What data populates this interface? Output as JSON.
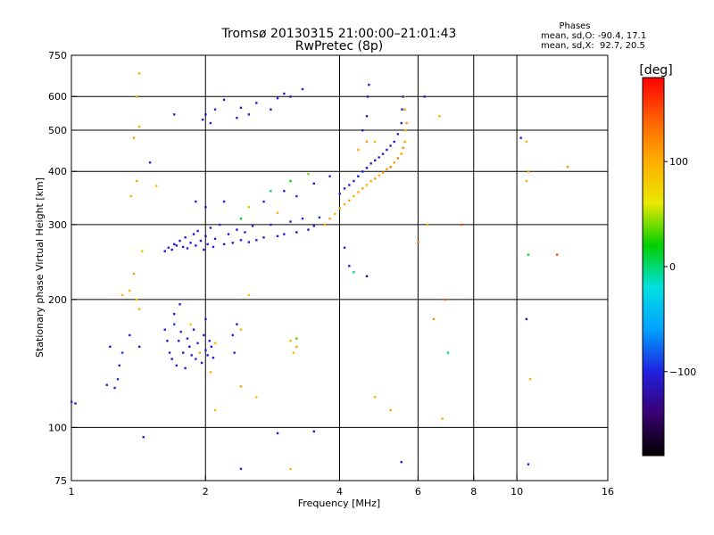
{
  "title": {
    "line1": "Tromsø 20130315 21:00:00–21:01:43",
    "line2": "RwPretec (8p)"
  },
  "phases_box": {
    "heading": "Phases",
    "line_o": "mean, sd,O: -90.4, 17.1",
    "line_x": "mean, sd,X:  92.7, 20.5"
  },
  "colorbar": {
    "label": "[deg]",
    "ticks": [
      {
        "label": "100",
        "value": 100
      },
      {
        "label": "0",
        "value": 0
      },
      {
        "label": "−100",
        "value": -100
      }
    ],
    "range": [
      -180,
      180
    ],
    "colors": [
      "#000000",
      "#3a0070",
      "#2020e0",
      "#00a0ff",
      "#00e0e0",
      "#00d000",
      "#e8e800",
      "#ffb000",
      "#ff6000",
      "#ff0000"
    ]
  },
  "chart_data": {
    "type": "scatter",
    "title": "Tromsø 20130315 21:00:00–21:01:43",
    "subtitle": "RwPretec (8p)",
    "xlabel": "Frequency [MHz]",
    "ylabel": "Stationary phase Virtual Height [km]",
    "x_scale": "log",
    "y_scale": "log",
    "xlim": [
      1,
      16
    ],
    "ylim": [
      75,
      750
    ],
    "x_ticks": [
      {
        "label": "1",
        "value": 1
      },
      {
        "label": "2",
        "value": 2
      },
      {
        "label": "4",
        "value": 4
      },
      {
        "label": "6",
        "value": 6
      },
      {
        "label": "8",
        "value": 8
      },
      {
        "label": "10",
        "value": 10
      },
      {
        "label": "16",
        "value": 16
      }
    ],
    "x_gridlines": [
      2,
      4,
      6,
      8,
      10
    ],
    "y_ticks": [
      {
        "label": "750",
        "value": 750
      },
      {
        "label": "600",
        "value": 600
      },
      {
        "label": "500",
        "value": 500
      },
      {
        "label": "400",
        "value": 400
      },
      {
        "label": "300",
        "value": 300
      },
      {
        "label": "200",
        "value": 200
      },
      {
        "label": "100",
        "value": 100
      },
      {
        "label": "75",
        "value": 75
      }
    ],
    "y_gridlines": [
      600,
      500,
      400,
      300,
      200,
      100
    ],
    "color_dimension": "phase [deg]",
    "points": [
      [
        1.0,
        115,
        -100
      ],
      [
        1.02,
        114,
        -110
      ],
      [
        1.2,
        126,
        -100
      ],
      [
        1.25,
        124,
        -105
      ],
      [
        1.27,
        130,
        -95
      ],
      [
        1.22,
        155,
        -110
      ],
      [
        1.28,
        140,
        -100
      ],
      [
        1.3,
        150,
        -90
      ],
      [
        1.35,
        165,
        -100
      ],
      [
        1.42,
        155,
        -110
      ],
      [
        1.45,
        95,
        -100
      ],
      [
        1.3,
        205,
        100
      ],
      [
        1.35,
        210,
        95
      ],
      [
        1.38,
        230,
        110
      ],
      [
        1.4,
        200,
        85
      ],
      [
        1.42,
        190,
        100
      ],
      [
        1.44,
        260,
        90
      ],
      [
        1.36,
        350,
        100
      ],
      [
        1.4,
        380,
        105
      ],
      [
        1.38,
        480,
        110
      ],
      [
        1.42,
        510,
        100
      ],
      [
        1.4,
        600,
        110
      ],
      [
        1.42,
        680,
        100
      ],
      [
        1.55,
        370,
        90
      ],
      [
        1.5,
        420,
        -100
      ],
      [
        1.62,
        170,
        -100
      ],
      [
        1.64,
        160,
        -110
      ],
      [
        1.66,
        150,
        -100
      ],
      [
        1.68,
        145,
        -120
      ],
      [
        1.7,
        175,
        -90
      ],
      [
        1.72,
        140,
        -110
      ],
      [
        1.74,
        160,
        -100
      ],
      [
        1.76,
        168,
        -95
      ],
      [
        1.78,
        150,
        -110
      ],
      [
        1.8,
        138,
        -100
      ],
      [
        1.82,
        162,
        -105
      ],
      [
        1.84,
        155,
        -115
      ],
      [
        1.86,
        148,
        -100
      ],
      [
        1.88,
        170,
        -110
      ],
      [
        1.9,
        145,
        -95
      ],
      [
        1.92,
        158,
        -100
      ],
      [
        1.94,
        150,
        100
      ],
      [
        1.96,
        142,
        -110
      ],
      [
        1.98,
        165,
        -100
      ],
      [
        2.0,
        152,
        -105
      ],
      [
        2.02,
        148,
        -110
      ],
      [
        2.04,
        160,
        -100
      ],
      [
        2.06,
        155,
        -120
      ],
      [
        2.08,
        146,
        -100
      ],
      [
        2.1,
        158,
        90
      ],
      [
        1.7,
        185,
        -100
      ],
      [
        1.75,
        195,
        -110
      ],
      [
        1.85,
        175,
        80
      ],
      [
        2.0,
        180,
        -100
      ],
      [
        2.05,
        135,
        100
      ],
      [
        2.3,
        165,
        -100
      ],
      [
        2.35,
        175,
        -110
      ],
      [
        2.4,
        170,
        100
      ],
      [
        2.32,
        150,
        -100
      ],
      [
        2.5,
        205,
        90
      ],
      [
        1.62,
        260,
        -110
      ],
      [
        1.65,
        265,
        -100
      ],
      [
        1.68,
        262,
        -120
      ],
      [
        1.7,
        270,
        -100
      ],
      [
        1.72,
        268,
        -110
      ],
      [
        1.75,
        275,
        -100
      ],
      [
        1.78,
        266,
        -115
      ],
      [
        1.8,
        280,
        -100
      ],
      [
        1.82,
        264,
        -110
      ],
      [
        1.85,
        272,
        -100
      ],
      [
        1.88,
        285,
        -110
      ],
      [
        1.9,
        268,
        -105
      ],
      [
        1.92,
        290,
        -100
      ],
      [
        1.95,
        275,
        -110
      ],
      [
        1.98,
        262,
        -100
      ],
      [
        2.0,
        282,
        -115
      ],
      [
        2.02,
        270,
        -100
      ],
      [
        2.05,
        295,
        -110
      ],
      [
        2.08,
        266,
        -100
      ],
      [
        2.1,
        278,
        -105
      ],
      [
        2.15,
        300,
        -100
      ],
      [
        2.2,
        270,
        -110
      ],
      [
        2.25,
        285,
        -100
      ],
      [
        2.3,
        272,
        -110
      ],
      [
        2.35,
        292,
        -100
      ],
      [
        2.4,
        276,
        -105
      ],
      [
        2.45,
        288,
        -100
      ],
      [
        2.5,
        273,
        -110
      ],
      [
        2.55,
        298,
        -100
      ],
      [
        2.6,
        276,
        -105
      ],
      [
        2.7,
        280,
        -110
      ],
      [
        2.8,
        300,
        -100
      ],
      [
        2.9,
        282,
        -110
      ],
      [
        3.0,
        285,
        -100
      ],
      [
        3.1,
        305,
        -105
      ],
      [
        3.2,
        288,
        -110
      ],
      [
        3.3,
        310,
        -100
      ],
      [
        3.4,
        292,
        -110
      ],
      [
        3.5,
        298,
        -100
      ],
      [
        3.6,
        312,
        -110
      ],
      [
        3.7,
        300,
        100
      ],
      [
        3.8,
        310,
        110
      ],
      [
        3.9,
        318,
        100
      ],
      [
        4.0,
        328,
        105
      ],
      [
        4.1,
        335,
        100
      ],
      [
        4.2,
        342,
        110
      ],
      [
        4.3,
        350,
        100
      ],
      [
        4.4,
        358,
        105
      ],
      [
        4.5,
        365,
        110
      ],
      [
        4.6,
        372,
        100
      ],
      [
        4.7,
        380,
        105
      ],
      [
        4.8,
        385,
        110
      ],
      [
        4.9,
        392,
        100
      ],
      [
        5.0,
        398,
        120
      ],
      [
        5.1,
        405,
        110
      ],
      [
        5.2,
        410,
        130
      ],
      [
        5.3,
        420,
        110
      ],
      [
        5.4,
        430,
        120
      ],
      [
        5.5,
        440,
        110
      ],
      [
        5.55,
        455,
        120
      ],
      [
        5.6,
        470,
        110
      ],
      [
        5.62,
        500,
        100
      ],
      [
        5.65,
        520,
        110
      ],
      [
        5.6,
        560,
        110
      ],
      [
        5.58,
        600,
        100
      ],
      [
        4.0,
        355,
        -100
      ],
      [
        4.1,
        365,
        -110
      ],
      [
        4.2,
        372,
        -100
      ],
      [
        4.3,
        380,
        -105
      ],
      [
        4.4,
        390,
        -110
      ],
      [
        4.5,
        400,
        -100
      ],
      [
        4.6,
        408,
        -115
      ],
      [
        4.7,
        418,
        -100
      ],
      [
        4.8,
        425,
        -110
      ],
      [
        4.9,
        432,
        -100
      ],
      [
        5.0,
        440,
        -105
      ],
      [
        5.1,
        450,
        -110
      ],
      [
        5.2,
        460,
        -100
      ],
      [
        5.3,
        470,
        -110
      ],
      [
        5.4,
        490,
        -100
      ],
      [
        5.5,
        520,
        -105
      ],
      [
        5.52,
        560,
        -110
      ],
      [
        5.55,
        600,
        -100
      ],
      [
        4.5,
        500,
        -100
      ],
      [
        4.6,
        540,
        -110
      ],
      [
        4.62,
        600,
        -100
      ],
      [
        4.65,
        640,
        -105
      ],
      [
        4.4,
        450,
        100
      ],
      [
        4.6,
        470,
        110
      ],
      [
        4.8,
        470,
        100
      ],
      [
        1.9,
        340,
        -100
      ],
      [
        2.0,
        330,
        -110
      ],
      [
        2.2,
        340,
        -100
      ],
      [
        2.5,
        330,
        90
      ],
      [
        2.7,
        340,
        -100
      ],
      [
        3.0,
        360,
        -105
      ],
      [
        3.2,
        350,
        -100
      ],
      [
        3.5,
        375,
        -110
      ],
      [
        3.8,
        390,
        -100
      ],
      [
        2.9,
        320,
        100
      ],
      [
        3.4,
        395,
        40
      ],
      [
        3.1,
        380,
        20
      ],
      [
        2.4,
        310,
        10
      ],
      [
        2.8,
        360,
        0
      ],
      [
        1.97,
        530,
        -100
      ],
      [
        2.0,
        545,
        -110
      ],
      [
        2.05,
        520,
        -100
      ],
      [
        2.1,
        560,
        -105
      ],
      [
        2.2,
        590,
        -110
      ],
      [
        2.35,
        535,
        -100
      ],
      [
        2.4,
        565,
        -110
      ],
      [
        2.5,
        545,
        -100
      ],
      [
        2.6,
        580,
        -105
      ],
      [
        2.8,
        560,
        -110
      ],
      [
        2.9,
        595,
        -100
      ],
      [
        3.0,
        610,
        -110
      ],
      [
        3.1,
        600,
        -100
      ],
      [
        3.3,
        625,
        -105
      ],
      [
        1.7,
        545,
        -100
      ],
      [
        3.1,
        160,
        100
      ],
      [
        3.2,
        155,
        110
      ],
      [
        3.15,
        150,
        90
      ],
      [
        3.2,
        162,
        30
      ],
      [
        2.1,
        110,
        100
      ],
      [
        2.4,
        125,
        110
      ],
      [
        2.6,
        118,
        90
      ],
      [
        2.9,
        97,
        -110
      ],
      [
        3.5,
        98,
        -100
      ],
      [
        2.4,
        80,
        -100
      ],
      [
        3.1,
        80,
        100
      ],
      [
        4.1,
        265,
        -110
      ],
      [
        4.2,
        240,
        -100
      ],
      [
        4.3,
        232,
        0
      ],
      [
        4.6,
        227,
        -140
      ],
      [
        4.8,
        118,
        100
      ],
      [
        5.2,
        110,
        110
      ],
      [
        5.5,
        83,
        -100
      ],
      [
        6.0,
        273,
        130
      ],
      [
        6.3,
        300,
        100
      ],
      [
        6.5,
        180,
        120
      ],
      [
        6.9,
        200,
        140
      ],
      [
        7.0,
        150,
        0
      ],
      [
        6.8,
        105,
        100
      ],
      [
        7.5,
        300,
        150
      ],
      [
        10.2,
        480,
        -100
      ],
      [
        10.5,
        470,
        100
      ],
      [
        10.6,
        400,
        110
      ],
      [
        10.5,
        380,
        100
      ],
      [
        10.6,
        255,
        10
      ],
      [
        10.5,
        180,
        -110
      ],
      [
        10.7,
        130,
        100
      ],
      [
        10.6,
        82,
        -100
      ],
      [
        12.3,
        255,
        150
      ],
      [
        13.0,
        410,
        110
      ],
      [
        6.2,
        600,
        -100
      ],
      [
        6.7,
        540,
        100
      ]
    ]
  }
}
